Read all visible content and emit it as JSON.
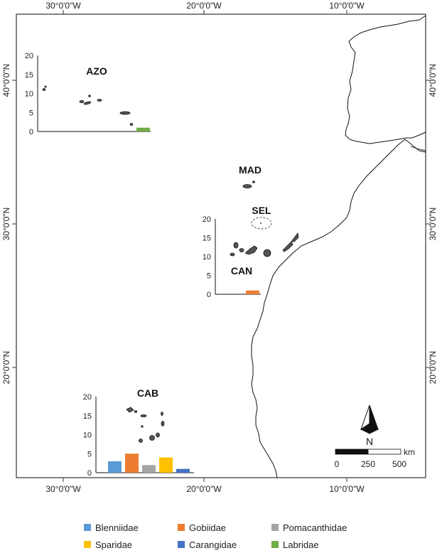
{
  "map": {
    "lon_labels_top": [
      "30°0'0\"W",
      "20°0'0\"W",
      "10°0'0\"W"
    ],
    "lon_labels_bottom": [
      "30°0'0\"W",
      "20°0'0\"W",
      "10°0'0\"W"
    ],
    "lat_labels_left": [
      "40°0'0\"N",
      "30°0'0\"N",
      "20°0'0\"N"
    ],
    "lat_labels_right": [
      "40°0'0\"N",
      "30°0'0\"N",
      "20°0'0\"N"
    ],
    "north_arrow": {
      "label": "N",
      "icon": "north-arrow-icon"
    },
    "scale_bar": {
      "unit": "km",
      "ticks": [
        "0",
        "250",
        "500"
      ]
    },
    "regions": {
      "azo": "AZO",
      "mad": "MAD",
      "sel": "SEL",
      "can": "CAN",
      "cab": "CAB"
    }
  },
  "chart_data": [
    {
      "type": "bar",
      "region": "AZO",
      "ylim": [
        0,
        20
      ],
      "yticks": [
        "0",
        "5",
        "10",
        "15",
        "20"
      ],
      "categories": [
        "Labridae"
      ],
      "values": [
        1
      ]
    },
    {
      "type": "bar",
      "region": "CAN",
      "ylim": [
        0,
        20
      ],
      "yticks": [
        "0",
        "5",
        "10",
        "15",
        "20"
      ],
      "categories": [
        "Gobiidae"
      ],
      "values": [
        1
      ]
    },
    {
      "type": "bar",
      "region": "CAB",
      "ylim": [
        0,
        20
      ],
      "yticks": [
        "0",
        "5",
        "10",
        "15",
        "20"
      ],
      "categories": [
        "Blenniidae",
        "Gobiidae",
        "Pomacanthidae",
        "Sparidae",
        "Carangidae"
      ],
      "values": [
        3,
        5,
        2,
        4,
        1
      ]
    }
  ],
  "legend": {
    "items": [
      {
        "label": "Blenniidae",
        "color": "#5B9BD5"
      },
      {
        "label": "Gobiidae",
        "color": "#ED7D31"
      },
      {
        "label": "Pomacanthidae",
        "color": "#A5A5A5"
      },
      {
        "label": "Sparidae",
        "color": "#FFC000"
      },
      {
        "label": "Carangidae",
        "color": "#4472C4"
      },
      {
        "label": "Labridae",
        "color": "#70AD47"
      }
    ]
  }
}
